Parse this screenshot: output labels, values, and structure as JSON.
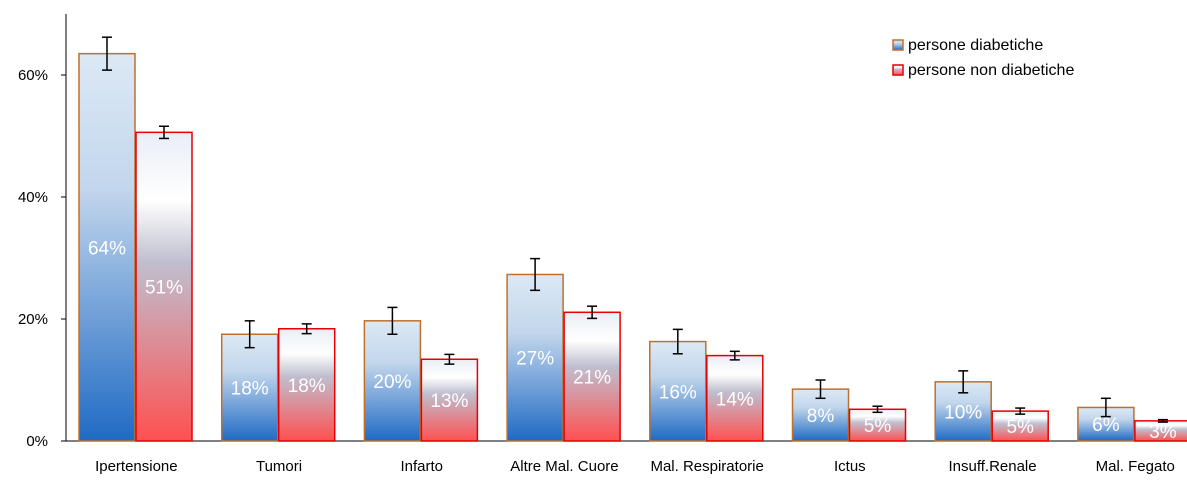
{
  "chart_data": {
    "type": "bar",
    "title": "",
    "xlabel": "",
    "ylabel": "",
    "ylim": [
      0,
      0.6
    ],
    "yticks": [
      {
        "value": 0,
        "label": "0%"
      },
      {
        "value": 0.2,
        "label": "20%"
      },
      {
        "value": 0.4,
        "label": "40%"
      },
      {
        "value": 0.6,
        "label": "60%"
      }
    ],
    "categories": [
      "Ipertensione",
      "Tumori",
      "Infarto",
      "Altre Mal. Cuore",
      "Mal. Respiratorie",
      "Ictus",
      "Insuff.Renale",
      "Mal. Fegato"
    ],
    "series": [
      {
        "name": "persone diabetiche",
        "values": [
          0.635,
          0.175,
          0.197,
          0.273,
          0.163,
          0.085,
          0.097,
          0.055
        ],
        "error": [
          0.027,
          0.022,
          0.022,
          0.026,
          0.02,
          0.015,
          0.018,
          0.015
        ],
        "labels": [
          "64%",
          "18%",
          "20%",
          "27%",
          "16%",
          "8%",
          "10%",
          "6%"
        ],
        "color_top": "#dce9f5",
        "color_bottom": "#2268c0",
        "border": "#c0702a"
      },
      {
        "name": "persone non diabetiche",
        "values": [
          0.506,
          0.184,
          0.134,
          0.211,
          0.14,
          0.052,
          0.049,
          0.033
        ],
        "error": [
          0.01,
          0.008,
          0.008,
          0.01,
          0.007,
          0.005,
          0.005,
          0.002
        ],
        "labels": [
          "51%",
          "18%",
          "13%",
          "21%",
          "14%",
          "5%",
          "5%",
          "3%"
        ],
        "color_top": "#ffffff",
        "color_bottom": "#f85050",
        "border": "#e60000"
      }
    ],
    "legend_position": "top-right",
    "grid": false
  }
}
